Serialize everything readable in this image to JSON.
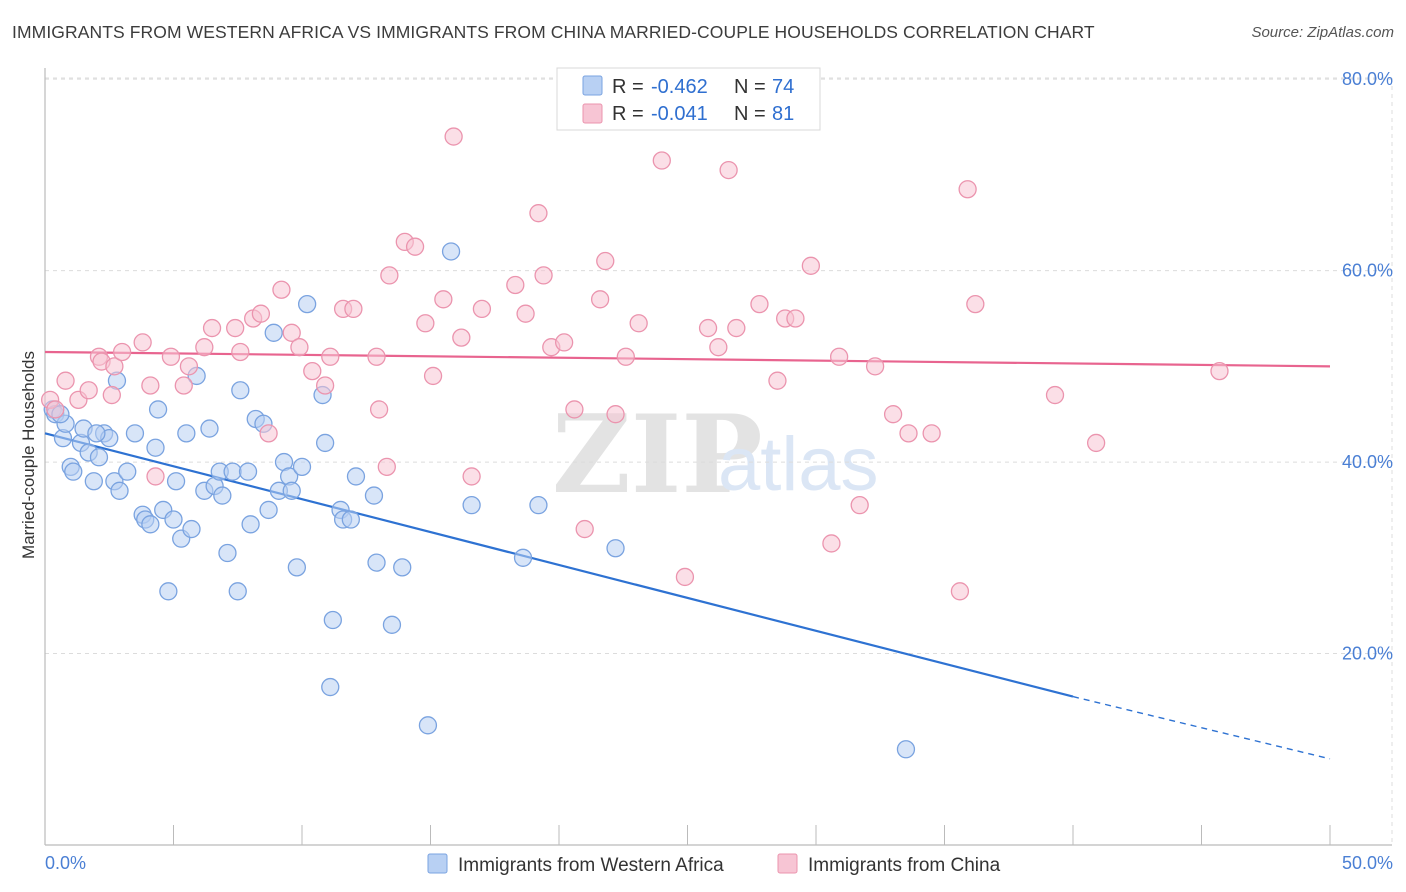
{
  "header": {
    "title": "IMMIGRANTS FROM WESTERN AFRICA VS IMMIGRANTS FROM CHINA MARRIED-COUPLE HOUSEHOLDS CORRELATION CHART",
    "source": "Source: ZipAtlas.com"
  },
  "watermark": {
    "zip": "ZIP",
    "atlas": "atlas"
  },
  "legend": {
    "r_label": "R =",
    "n_label": "N =",
    "series_a": {
      "r": "-0.462",
      "n": "74"
    },
    "series_b": {
      "r": "-0.041",
      "n": "81"
    }
  },
  "colors": {
    "blue_fill": "#b8d0f3",
    "blue_stroke": "#7aa3e0",
    "blue_line": "#2e72d2",
    "pink_fill": "#f7c5d4",
    "pink_stroke": "#eb94ae",
    "pink_line": "#e8648f"
  },
  "chart_data": {
    "type": "scatter",
    "title": "IMMIGRANTS FROM WESTERN AFRICA VS IMMIGRANTS FROM CHINA MARRIED-COUPLE HOUSEHOLDS CORRELATION CHART",
    "xlabel": "",
    "ylabel": "Married-couple Households",
    "xlim": [
      0,
      50
    ],
    "ylim": [
      0,
      82
    ],
    "x_tick_labels": [
      "0.0%",
      "50.0%"
    ],
    "y_ticks": [
      20,
      40,
      60,
      80
    ],
    "y_tick_labels": [
      "20.0%",
      "40.0%",
      "60.0%",
      "80.0%"
    ],
    "grid": true,
    "legend_position": "top-center",
    "series": [
      {
        "name": "Immigrants from Western Africa",
        "color": "#2e72d2",
        "r": -0.462,
        "n": 74,
        "trend": {
          "x0": 0,
          "y0": 43.0,
          "x1": 40,
          "y1": 15.5,
          "dashed_to_x": 50,
          "dashed_to_y": 9.0
        },
        "points": [
          [
            0.3,
            45.5
          ],
          [
            0.4,
            45.0
          ],
          [
            0.7,
            42.5
          ],
          [
            0.8,
            44.0
          ],
          [
            1.0,
            39.5
          ],
          [
            1.1,
            39.0
          ],
          [
            1.4,
            42.0
          ],
          [
            1.5,
            43.5
          ],
          [
            1.7,
            41.0
          ],
          [
            1.9,
            38.0
          ],
          [
            2.1,
            40.5
          ],
          [
            2.3,
            43.0
          ],
          [
            2.5,
            42.5
          ],
          [
            2.7,
            38.0
          ],
          [
            2.8,
            48.5
          ],
          [
            2.9,
            37.0
          ],
          [
            3.2,
            39.0
          ],
          [
            3.5,
            43.0
          ],
          [
            3.8,
            34.5
          ],
          [
            3.9,
            34.0
          ],
          [
            4.1,
            33.5
          ],
          [
            4.3,
            41.5
          ],
          [
            4.4,
            45.5
          ],
          [
            4.6,
            35.0
          ],
          [
            4.8,
            26.5
          ],
          [
            5.0,
            34.0
          ],
          [
            5.1,
            38.0
          ],
          [
            5.3,
            32.0
          ],
          [
            5.5,
            43.0
          ],
          [
            5.7,
            33.0
          ],
          [
            5.9,
            49.0
          ],
          [
            6.2,
            37.0
          ],
          [
            6.4,
            43.5
          ],
          [
            6.6,
            37.5
          ],
          [
            6.8,
            39.0
          ],
          [
            6.9,
            36.5
          ],
          [
            7.1,
            30.5
          ],
          [
            7.3,
            39.0
          ],
          [
            7.5,
            26.5
          ],
          [
            7.6,
            47.5
          ],
          [
            7.9,
            39.0
          ],
          [
            8.0,
            33.5
          ],
          [
            8.2,
            44.5
          ],
          [
            8.5,
            44.0
          ],
          [
            8.7,
            35.0
          ],
          [
            8.9,
            53.5
          ],
          [
            9.1,
            37.0
          ],
          [
            9.3,
            40.0
          ],
          [
            9.5,
            38.5
          ],
          [
            9.6,
            37.0
          ],
          [
            9.8,
            29.0
          ],
          [
            10.0,
            39.5
          ],
          [
            10.2,
            56.5
          ],
          [
            10.8,
            47.0
          ],
          [
            10.9,
            42.0
          ],
          [
            11.2,
            23.5
          ],
          [
            11.1,
            16.5
          ],
          [
            11.5,
            35.0
          ],
          [
            11.6,
            34.0
          ],
          [
            11.9,
            34.0
          ],
          [
            12.1,
            38.5
          ],
          [
            12.8,
            36.5
          ],
          [
            12.9,
            29.5
          ],
          [
            13.5,
            23.0
          ],
          [
            13.9,
            29.0
          ],
          [
            14.9,
            12.5
          ],
          [
            15.8,
            62.0
          ],
          [
            16.6,
            35.5
          ],
          [
            18.6,
            30.0
          ],
          [
            19.2,
            35.5
          ],
          [
            22.2,
            31.0
          ],
          [
            33.5,
            10.0
          ],
          [
            0.6,
            45.0
          ],
          [
            2.0,
            43.0
          ]
        ]
      },
      {
        "name": "Immigrants from China",
        "color": "#e8648f",
        "r": -0.041,
        "n": 81,
        "trend": {
          "x0": 0,
          "y0": 51.5,
          "x1": 50,
          "y1": 50.0
        },
        "points": [
          [
            0.2,
            46.5
          ],
          [
            0.4,
            45.5
          ],
          [
            0.8,
            48.5
          ],
          [
            1.3,
            46.5
          ],
          [
            1.7,
            47.5
          ],
          [
            2.1,
            51.0
          ],
          [
            2.2,
            50.5
          ],
          [
            2.6,
            47.0
          ],
          [
            2.7,
            50.0
          ],
          [
            3.0,
            51.5
          ],
          [
            3.8,
            52.5
          ],
          [
            4.1,
            48.0
          ],
          [
            4.3,
            38.5
          ],
          [
            4.9,
            51.0
          ],
          [
            5.4,
            48.0
          ],
          [
            5.6,
            50.0
          ],
          [
            6.2,
            52.0
          ],
          [
            6.5,
            54.0
          ],
          [
            7.4,
            54.0
          ],
          [
            7.6,
            51.5
          ],
          [
            8.1,
            55.0
          ],
          [
            8.4,
            55.5
          ],
          [
            8.7,
            43.0
          ],
          [
            9.2,
            58.0
          ],
          [
            9.6,
            53.5
          ],
          [
            9.9,
            52.0
          ],
          [
            10.4,
            49.5
          ],
          [
            10.9,
            48.0
          ],
          [
            11.1,
            51.0
          ],
          [
            11.6,
            56.0
          ],
          [
            12.0,
            56.0
          ],
          [
            12.9,
            51.0
          ],
          [
            13.0,
            45.5
          ],
          [
            13.4,
            59.5
          ],
          [
            13.3,
            39.5
          ],
          [
            14.0,
            63.0
          ],
          [
            14.4,
            62.5
          ],
          [
            14.8,
            54.5
          ],
          [
            15.1,
            49.0
          ],
          [
            15.5,
            57.0
          ],
          [
            15.9,
            74.0
          ],
          [
            16.2,
            53.0
          ],
          [
            16.6,
            38.5
          ],
          [
            17.0,
            56.0
          ],
          [
            18.3,
            58.5
          ],
          [
            18.7,
            55.5
          ],
          [
            19.2,
            66.0
          ],
          [
            19.4,
            59.5
          ],
          [
            19.7,
            52.0
          ],
          [
            20.2,
            52.5
          ],
          [
            20.6,
            45.5
          ],
          [
            21.0,
            33.0
          ],
          [
            21.6,
            57.0
          ],
          [
            21.8,
            61.0
          ],
          [
            22.2,
            45.0
          ],
          [
            22.6,
            51.0
          ],
          [
            23.1,
            54.5
          ],
          [
            24.0,
            71.5
          ],
          [
            24.9,
            28.0
          ],
          [
            25.8,
            54.0
          ],
          [
            26.2,
            52.0
          ],
          [
            26.6,
            70.5
          ],
          [
            26.9,
            54.0
          ],
          [
            27.8,
            56.5
          ],
          [
            28.5,
            48.5
          ],
          [
            28.8,
            55.0
          ],
          [
            29.2,
            55.0
          ],
          [
            29.8,
            60.5
          ],
          [
            30.6,
            31.5
          ],
          [
            30.9,
            51.0
          ],
          [
            31.7,
            35.5
          ],
          [
            32.3,
            50.0
          ],
          [
            33.0,
            45.0
          ],
          [
            33.6,
            43.0
          ],
          [
            34.5,
            43.0
          ],
          [
            35.6,
            26.5
          ],
          [
            35.9,
            68.5
          ],
          [
            36.2,
            56.5
          ],
          [
            39.3,
            47.0
          ],
          [
            40.9,
            42.0
          ],
          [
            45.7,
            49.5
          ]
        ]
      }
    ]
  },
  "bottom_legend": [
    {
      "label": "Immigrants from Western Africa"
    },
    {
      "label": "Immigrants from China"
    }
  ]
}
